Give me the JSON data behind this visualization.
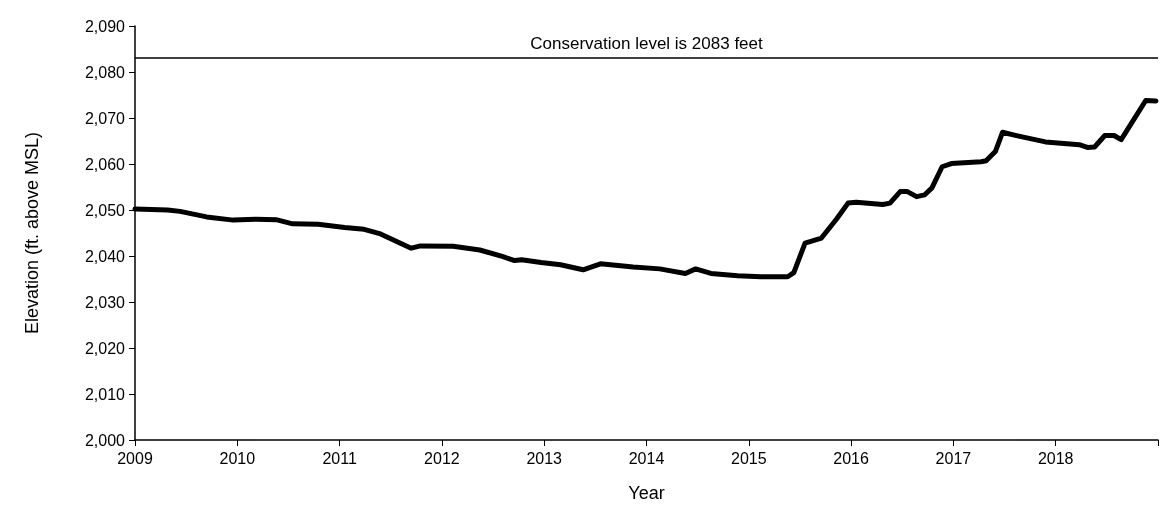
{
  "chart_data": {
    "type": "line",
    "xlabel": "Year",
    "ylabel": "Elevation (ft. above MSL)",
    "x": [
      2009.0,
      2009.32,
      2009.44,
      2009.7,
      2009.96,
      2010.18,
      2010.38,
      2010.54,
      2010.79,
      2011.05,
      2011.24,
      2011.4,
      2011.7,
      2011.79,
      2012.11,
      2012.37,
      2012.59,
      2012.71,
      2012.78,
      2012.97,
      2013.16,
      2013.38,
      2013.55,
      2013.87,
      2014.13,
      2014.38,
      2014.48,
      2014.63,
      2014.89,
      2015.12,
      2015.38,
      2015.44,
      2015.55,
      2015.71,
      2015.86,
      2015.97,
      2016.05,
      2016.31,
      2016.38,
      2016.48,
      2016.55,
      2016.64,
      2016.72,
      2016.79,
      2016.89,
      2016.98,
      2017.27,
      2017.32,
      2017.41,
      2017.48,
      2017.65,
      2017.9,
      2018.23,
      2018.31,
      2018.38,
      2018.48,
      2018.57,
      2018.64,
      2018.88,
      2018.98
    ],
    "series": [
      {
        "color": "#000000",
        "values": [
          2050.2,
          2050.0,
          2049.7,
          2048.5,
          2047.8,
          2048.0,
          2047.9,
          2047.0,
          2046.9,
          2046.2,
          2045.8,
          2044.8,
          2041.7,
          2042.2,
          2042.1,
          2041.3,
          2039.9,
          2039.0,
          2039.2,
          2038.6,
          2038.1,
          2037.0,
          2038.3,
          2037.6,
          2037.2,
          2036.2,
          2037.2,
          2036.2,
          2035.7,
          2035.5,
          2035.5,
          2036.4,
          2042.8,
          2043.9,
          2048.1,
          2051.5,
          2051.7,
          2051.2,
          2051.5,
          2054.0,
          2054.0,
          2052.9,
          2053.3,
          2054.8,
          2059.4,
          2060.1,
          2060.5,
          2060.7,
          2062.7,
          2066.9,
          2066.0,
          2064.8,
          2064.2,
          2063.6,
          2063.7,
          2066.2,
          2066.2,
          2065.3,
          2073.8,
          2073.7
        ]
      }
    ],
    "xlim": [
      2009,
      2019
    ],
    "xticks": [
      2009,
      2010,
      2011,
      2012,
      2013,
      2014,
      2015,
      2016,
      2017,
      2018,
      {
        "value": 2019,
        "label": null
      }
    ],
    "ylim": [
      2000,
      2090
    ],
    "yticks": [
      {
        "value": 2000,
        "label": "2,000"
      },
      {
        "value": 2010,
        "label": "2,010"
      },
      {
        "value": 2020,
        "label": "2,020"
      },
      {
        "value": 2030,
        "label": "2,030"
      },
      {
        "value": 2040,
        "label": "2,040"
      },
      {
        "value": 2050,
        "label": "2,050"
      },
      {
        "value": 2060,
        "label": "2,060"
      },
      {
        "value": 2070,
        "label": "2,070"
      },
      {
        "value": 2080,
        "label": "2,080"
      },
      {
        "value": 2090,
        "label": "2,090"
      }
    ],
    "ref_lines": [
      {
        "axis": "y",
        "value": 2083,
        "label": "Conservation level is 2083 feet",
        "color": "#000000"
      }
    ],
    "grid": false,
    "marker": "none",
    "line_style": "solid"
  }
}
